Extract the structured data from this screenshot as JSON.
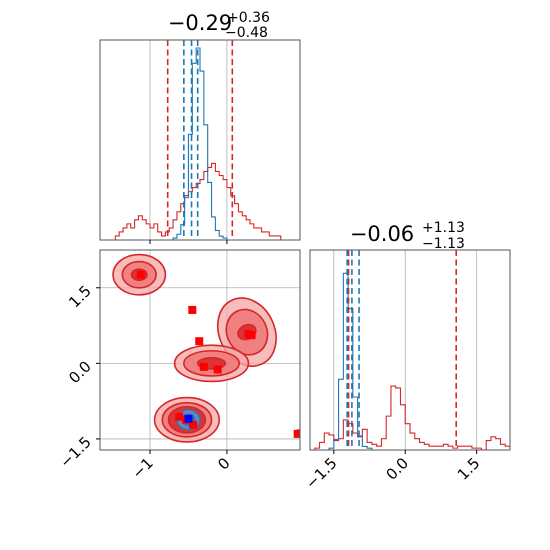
{
  "chart_data": {
    "type": "corner",
    "title_param_1": {
      "value": "−0.29",
      "upper": "+0.36",
      "lower": "−0.48"
    },
    "title_param_2": {
      "value": "−0.06",
      "upper": "+1.13",
      "lower": "−1.13"
    },
    "grid": true,
    "colors": {
      "wide": "#d62728",
      "narrow": "#1f77b4",
      "grid": "#b0b0b0",
      "marker_wide": "#ff0000",
      "marker_narrow": "#0000ff"
    },
    "xlim_1": [
      -1.65,
      0.95
    ],
    "xlim_2": [
      -2.0,
      2.2
    ],
    "ylim_2": [
      -1.72,
      2.25
    ],
    "x_ticks_1": [
      {
        "value": -1,
        "label": "−1"
      },
      {
        "value": 0,
        "label": "0"
      }
    ],
    "x_ticks_2": [
      {
        "value": -1.5,
        "label": "−1.5"
      },
      {
        "value": 0,
        "label": "0.0"
      },
      {
        "value": 1.5,
        "label": "1.5"
      }
    ],
    "y_ticks_2": [
      {
        "value": 1.5,
        "label": "1.5"
      },
      {
        "value": 0,
        "label": "0.0"
      },
      {
        "value": -1.5,
        "label": "−1.5"
      }
    ],
    "quantile_lines_1": {
      "wide": [
        -0.77,
        0.07
      ],
      "narrow": [
        -0.56,
        -0.46,
        -0.38
      ]
    },
    "quantile_lines_2": {
      "wide": [
        -1.19,
        1.07
      ],
      "narrow": [
        -1.22,
        -1.12,
        -0.97
      ]
    },
    "hist_1": {
      "bin_start": -1.65,
      "bin_width": 0.05,
      "wide": [
        0,
        0,
        0,
        0,
        1,
        2,
        3,
        4,
        3,
        5,
        6,
        5,
        4,
        3,
        4,
        2,
        1,
        2,
        3,
        5,
        7,
        9,
        11,
        12,
        13,
        14,
        15,
        17,
        18,
        19,
        17,
        16,
        15,
        13,
        11,
        9,
        7,
        6,
        5,
        4,
        3,
        3,
        2,
        2,
        1,
        1,
        1,
        0,
        0,
        0,
        0,
        0,
        0
      ],
      "narrow": [
        0,
        0,
        0,
        0,
        0,
        0,
        0,
        0,
        0,
        0,
        0,
        0,
        0,
        0,
        0,
        0,
        0,
        0,
        0,
        1,
        3,
        8,
        22,
        55,
        92,
        100,
        88,
        60,
        30,
        12,
        5,
        2,
        1,
        0,
        0,
        0,
        0,
        0,
        0,
        0,
        0,
        0,
        0,
        0,
        0,
        0,
        0,
        0,
        0,
        0,
        0,
        0
      ]
    },
    "hist_2": {
      "bin_start": -2.0,
      "bin_width": 0.1,
      "wide": [
        0,
        1,
        4,
        9,
        8,
        5,
        6,
        16,
        14,
        9,
        7,
        11,
        4,
        3,
        2,
        6,
        18,
        34,
        33,
        24,
        14,
        9,
        6,
        4,
        3,
        2,
        2,
        2,
        3,
        2,
        1,
        2,
        2,
        2,
        1,
        1,
        0,
        5,
        7,
        6,
        3,
        2
      ],
      "narrow": [
        0,
        0,
        0,
        0,
        1,
        6,
        40,
        100,
        80,
        30,
        8,
        2,
        1,
        0,
        0,
        0,
        0,
        0,
        0,
        0,
        0,
        0,
        0,
        0,
        0,
        0,
        0,
        0,
        0,
        0,
        0,
        0,
        0,
        0,
        0,
        0,
        0,
        0,
        0,
        0,
        0,
        0
      ]
    },
    "contours_wide": [
      {
        "cx": -1.14,
        "cy": 1.76,
        "levels": [
          [
            0.34,
            0.4
          ],
          [
            0.22,
            0.26
          ],
          [
            0.1,
            0.11
          ]
        ]
      },
      {
        "cx": 0.26,
        "cy": 0.62,
        "levels": [
          [
            0.36,
            0.7
          ],
          [
            0.26,
            0.46
          ],
          [
            0.12,
            0.14
          ]
        ],
        "rot": -25
      },
      {
        "cx": -0.2,
        "cy": 0.0,
        "levels": [
          [
            0.48,
            0.36
          ],
          [
            0.36,
            0.25
          ],
          [
            0.18,
            0.11
          ]
        ]
      },
      {
        "cx": -0.52,
        "cy": -1.12,
        "levels": [
          [
            0.42,
            0.44
          ],
          [
            0.32,
            0.34
          ],
          [
            0.24,
            0.26
          ]
        ]
      }
    ],
    "contours_narrow": [
      {
        "cx": -0.5,
        "cy": -1.12,
        "levels": [
          [
            0.15,
            0.2
          ],
          [
            0.08,
            0.11
          ]
        ]
      }
    ],
    "points_wide": [
      [
        -1.12,
        1.76
      ],
      [
        -0.45,
        1.06
      ],
      [
        -0.36,
        0.44
      ],
      [
        0.32,
        0.56
      ],
      [
        0.28,
        0.58
      ],
      [
        -0.3,
        -0.07
      ],
      [
        -0.12,
        -0.12
      ],
      [
        -0.62,
        -1.06
      ],
      [
        -0.44,
        -1.22
      ],
      [
        -0.53,
        -1.12
      ],
      [
        0.92,
        -1.4
      ],
      [
        0.96,
        -1.39
      ]
    ],
    "points_narrow": [
      [
        -0.5,
        -1.1
      ]
    ]
  }
}
